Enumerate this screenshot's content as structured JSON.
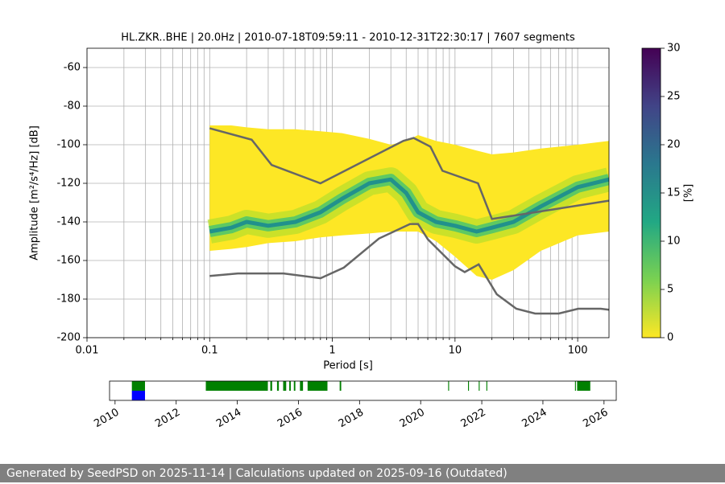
{
  "chart_data": [
    {
      "type": "ppsd",
      "title": "HL.ZKR..BHE | 20.0Hz | 2010-07-18T09:59:11 - 2010-12-31T22:30:17 | 7607 segments",
      "xlabel": "Period [s]",
      "ylabel": "Amplitude [m²/s⁴/Hz] [dB]",
      "log_x": true,
      "grid": true,
      "xlim": [
        0.01,
        180
      ],
      "ylim": [
        -200,
        -50
      ],
      "xticks": [
        0.01,
        0.1,
        1,
        10,
        100
      ],
      "xminorticks": [
        0.02,
        0.03,
        0.04,
        0.05,
        0.06,
        0.07,
        0.08,
        0.09,
        0.2,
        0.3,
        0.4,
        0.5,
        0.6,
        0.7,
        0.8,
        0.9,
        2,
        3,
        4,
        5,
        6,
        7,
        8,
        9,
        20,
        30,
        40,
        50,
        60,
        70,
        80,
        90
      ],
      "yticks": [
        -200,
        -180,
        -160,
        -140,
        -120,
        -100,
        -80,
        -60
      ],
      "density": {
        "periods": [
          0.1,
          0.15,
          0.2,
          0.3,
          0.5,
          0.8,
          1.2,
          2,
          3,
          4,
          5,
          7,
          10,
          15,
          20,
          30,
          50,
          100,
          180
        ],
        "upper": [
          -90,
          -90,
          -91,
          -92,
          -92,
          -93,
          -94,
          -97,
          -100,
          -98,
          -95,
          -98,
          -100,
          -103,
          -105,
          -104,
          -102,
          -100,
          -98
        ],
        "lower": [
          -155,
          -154,
          -153,
          -151,
          -150,
          -148,
          -147,
          -146,
          -145,
          -145,
          -145,
          -150,
          -158,
          -168,
          -170,
          -165,
          -155,
          -147,
          -145
        ],
        "mode": [
          -145,
          -143,
          -140,
          -142,
          -140,
          -135,
          -128,
          -120,
          -118,
          -125,
          -135,
          -140,
          -142,
          -145,
          -143,
          -140,
          -132,
          -122,
          -118
        ]
      },
      "colorbar": {
        "label": "[%]",
        "lim": [
          0,
          30
        ],
        "ticks": [
          0,
          5,
          10,
          15,
          20,
          25,
          30
        ]
      },
      "series": [
        {
          "color": "#666666",
          "x": [
            0.1,
            0.22,
            0.32,
            0.8,
            3.8,
            4.6,
            6.3,
            7.9,
            15.4,
            20,
            180
          ],
          "values": [
            -91.5,
            -97.4,
            -110.5,
            -120,
            -98,
            -96.5,
            -101,
            -113.5,
            -120,
            -138.5,
            -129
          ]
        },
        {
          "color": "#666666",
          "x": [
            0.1,
            0.17,
            0.4,
            0.8,
            1.24,
            2.4,
            4.3,
            5,
            6,
            10,
            12,
            15.6,
            21.9,
            31.6,
            45,
            70,
            101,
            154,
            180
          ],
          "values": [
            -168,
            -166.7,
            -166.7,
            -169.2,
            -163.7,
            -148.6,
            -141.1,
            -141.1,
            -149,
            -163,
            -166,
            -162,
            -177.5,
            -185,
            -187.5,
            -187.5,
            -185,
            -185,
            -185.5
          ]
        }
      ]
    },
    {
      "type": "timeline",
      "xlim": [
        2009.82,
        2026.4
      ],
      "xticks": [
        2010,
        2012,
        2014,
        2016,
        2018,
        2020,
        2022,
        2024,
        2026
      ],
      "series": [
        {
          "color": "#008000",
          "segments": [
            [
              2010.55,
              2010.98
            ],
            [
              2012.97,
              2015.0
            ],
            [
              2015.08,
              2015.14
            ],
            [
              2015.3,
              2015.36
            ],
            [
              2015.5,
              2015.6
            ],
            [
              2015.7,
              2015.75
            ],
            [
              2015.85,
              2015.9
            ],
            [
              2016.05,
              2016.15
            ],
            [
              2016.3,
              2016.95
            ],
            [
              2017.35,
              2017.4
            ],
            [
              2020.9,
              2020.93
            ],
            [
              2021.55,
              2021.58
            ],
            [
              2021.9,
              2021.93
            ],
            [
              2022.15,
              2022.18
            ],
            [
              2025.05,
              2025.08
            ],
            [
              2025.12,
              2025.55
            ]
          ]
        },
        {
          "color": "#0000ff",
          "segments": [
            [
              2010.55,
              2010.98
            ]
          ]
        }
      ]
    }
  ],
  "footer": "Generated by SeedPSD on 2025-11-14 | Calculations updated on 2025-09-16 (Outdated)"
}
